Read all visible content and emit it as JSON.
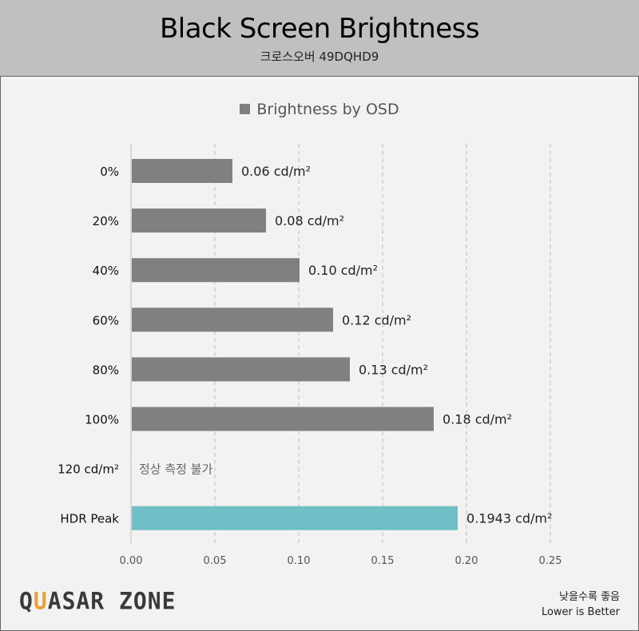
{
  "header": {
    "title": "Black Screen Brightness",
    "subtitle": "크로스오버 49DQHD9"
  },
  "footer": {
    "logo": "QUASAR ZONE",
    "note_ko": "낮을수록 좋음",
    "note_en": "Lower is Better"
  },
  "chart_data": {
    "type": "bar",
    "orientation": "horizontal",
    "title": "Black Screen Brightness",
    "subtitle": "크로스오버 49DQHD9",
    "legend": {
      "entries": [
        "Brightness by OSD"
      ],
      "placement": "top"
    },
    "categories": [
      "0%",
      "20%",
      "40%",
      "60%",
      "80%",
      "100%",
      "120 cd/m²",
      "HDR Peak"
    ],
    "values": [
      0.06,
      0.08,
      0.1,
      0.12,
      0.13,
      0.18,
      null,
      0.1943
    ],
    "data_labels": [
      "0.06 cd/m²",
      "0.08 cd/m²",
      "0.10 cd/m²",
      "0.12 cd/m²",
      "0.13 cd/m²",
      "0.18 cd/m²",
      "정상 측정 불가",
      "0.1943 cd/m²"
    ],
    "bar_colors": [
      "#808080",
      "#808080",
      "#808080",
      "#808080",
      "#808080",
      "#808080",
      "#808080",
      "#70bfc6"
    ],
    "xlim": [
      0,
      0.25
    ],
    "xticks": [
      "0.00",
      "0.05",
      "0.10",
      "0.15",
      "0.20",
      "0.25"
    ],
    "grid": "vertical dashed",
    "xlabel": "",
    "ylabel": ""
  }
}
